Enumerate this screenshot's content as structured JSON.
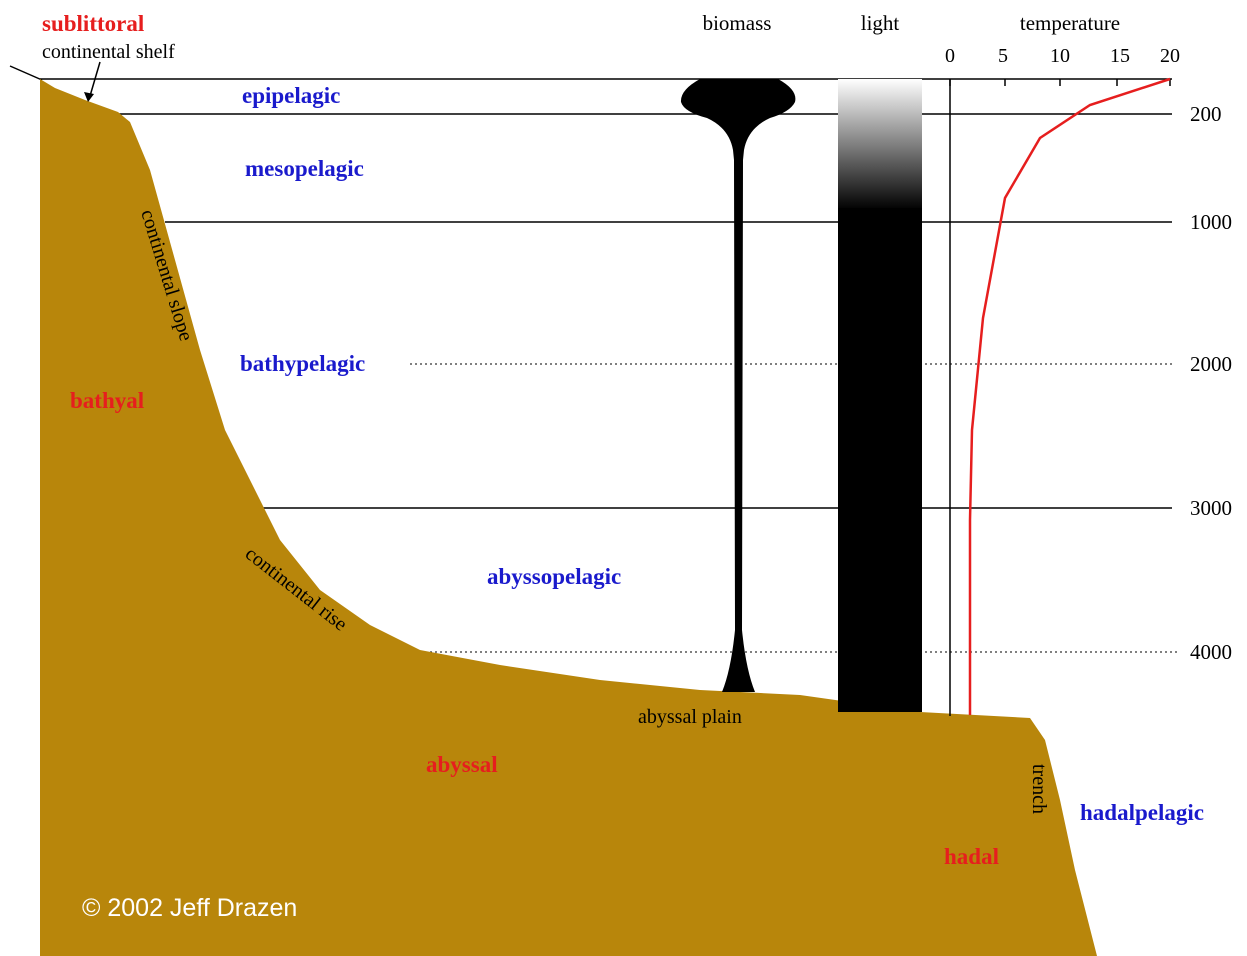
{
  "header": {
    "biomass": "biomass",
    "light": "light",
    "temperature": "temperature"
  },
  "temperature_ticks": [
    "0",
    "5",
    "10",
    "15",
    "20"
  ],
  "depths": [
    "200",
    "1000",
    "2000",
    "3000",
    "4000"
  ],
  "pelagic_zones": [
    "epipelagic",
    "mesopelagic",
    "bathypelagic",
    "abyssopelagic",
    "hadalpelagic"
  ],
  "benthic_zones": [
    "sublittoral",
    "bathyal",
    "abyssal",
    "hadal"
  ],
  "features": [
    "continental shelf",
    "continental slope",
    "continental rise",
    "abyssal plain",
    "trench"
  ],
  "credit": "© 2002 Jeff Drazen"
}
